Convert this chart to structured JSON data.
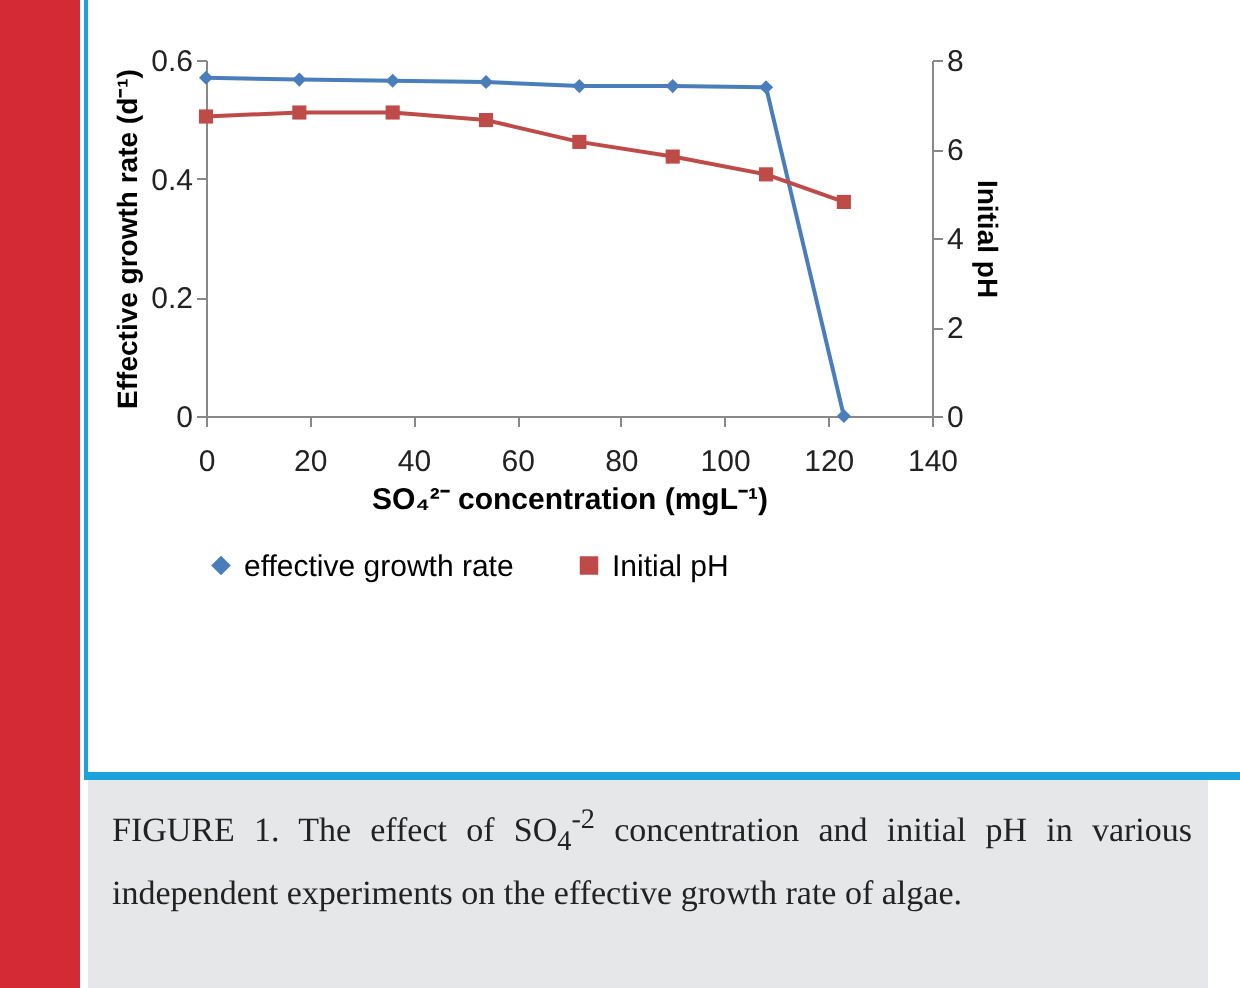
{
  "chart_data": {
    "type": "line",
    "x": [
      0,
      18,
      36,
      54,
      72,
      90,
      108,
      123
    ],
    "xlabel": "SO₄²⁻ concentration (mgL⁻¹)",
    "ylabel": "Effective growth rate (d⁻¹)",
    "y2label": "Initial pH",
    "xlim": [
      0,
      140
    ],
    "xticks": [
      0,
      20,
      40,
      60,
      80,
      100,
      120,
      140
    ],
    "ylim": [
      0,
      0.6
    ],
    "yticks": [
      0,
      0.2,
      0.4,
      0.6
    ],
    "y2lim": [
      0,
      8
    ],
    "y2ticks": [
      0,
      2,
      4,
      6,
      8
    ],
    "series": [
      {
        "name": "effective growth rate",
        "color": "#4a7ebb",
        "marker": "diamond",
        "values": [
          0.57,
          0.567,
          0.565,
          0.563,
          0.556,
          0.556,
          0.554,
          0
        ]
      },
      {
        "name": "Initial pH",
        "color": "#be4b48",
        "marker": "square",
        "axis": "y2",
        "values": [
          6.73,
          6.82,
          6.82,
          6.65,
          6.16,
          5.83,
          5.43,
          4.81
        ]
      }
    ],
    "legend": "bottom",
    "grid": false,
    "annotations": [
      "FIGURE 1. The effect of SO$_{4}$$^{-2}$ concentration and initial pH in various independent experiments on the effective growth rate of algae."
    ]
  }
}
